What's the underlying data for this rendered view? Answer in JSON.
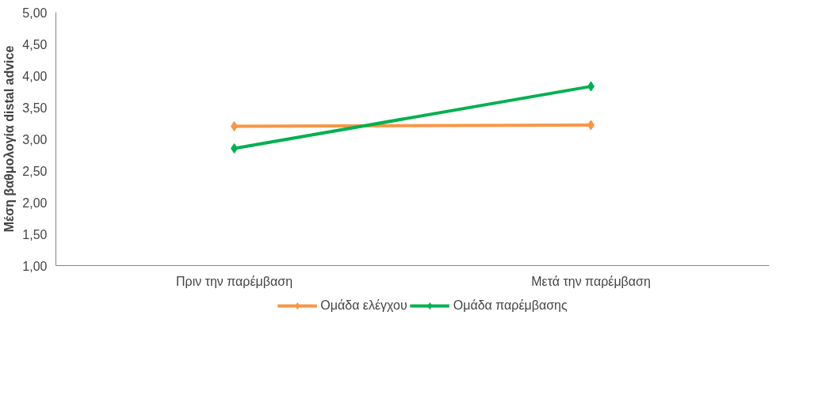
{
  "chart_data": {
    "type": "line",
    "ylabel": "Μέση βαθμολογία distal advice",
    "categories": [
      "Πριν την παρέμβαση",
      "Μετά την παρέμβαση"
    ],
    "series": [
      {
        "name": "Ομάδα ελέγχου",
        "color": "#f79646",
        "values": [
          3.2,
          3.22
        ]
      },
      {
        "name": "Ομάδα παρέμβασης",
        "color": "#00b050",
        "values": [
          2.85,
          3.83
        ]
      }
    ],
    "ylim": [
      1,
      5
    ],
    "yticks": [
      {
        "value": 1,
        "label": "1,00"
      },
      {
        "value": 1.5,
        "label": "1,50"
      },
      {
        "value": 2,
        "label": "2,00"
      },
      {
        "value": 2.5,
        "label": "2,50"
      },
      {
        "value": 3,
        "label": "3,00"
      },
      {
        "value": 3.5,
        "label": "3,50"
      },
      {
        "value": 4,
        "label": "4,00"
      },
      {
        "value": 4.5,
        "label": "4,50"
      },
      {
        "value": 5,
        "label": "5,00"
      }
    ],
    "grid": false,
    "legend": "bottom",
    "marker": "diamond",
    "line_style": "solid"
  }
}
